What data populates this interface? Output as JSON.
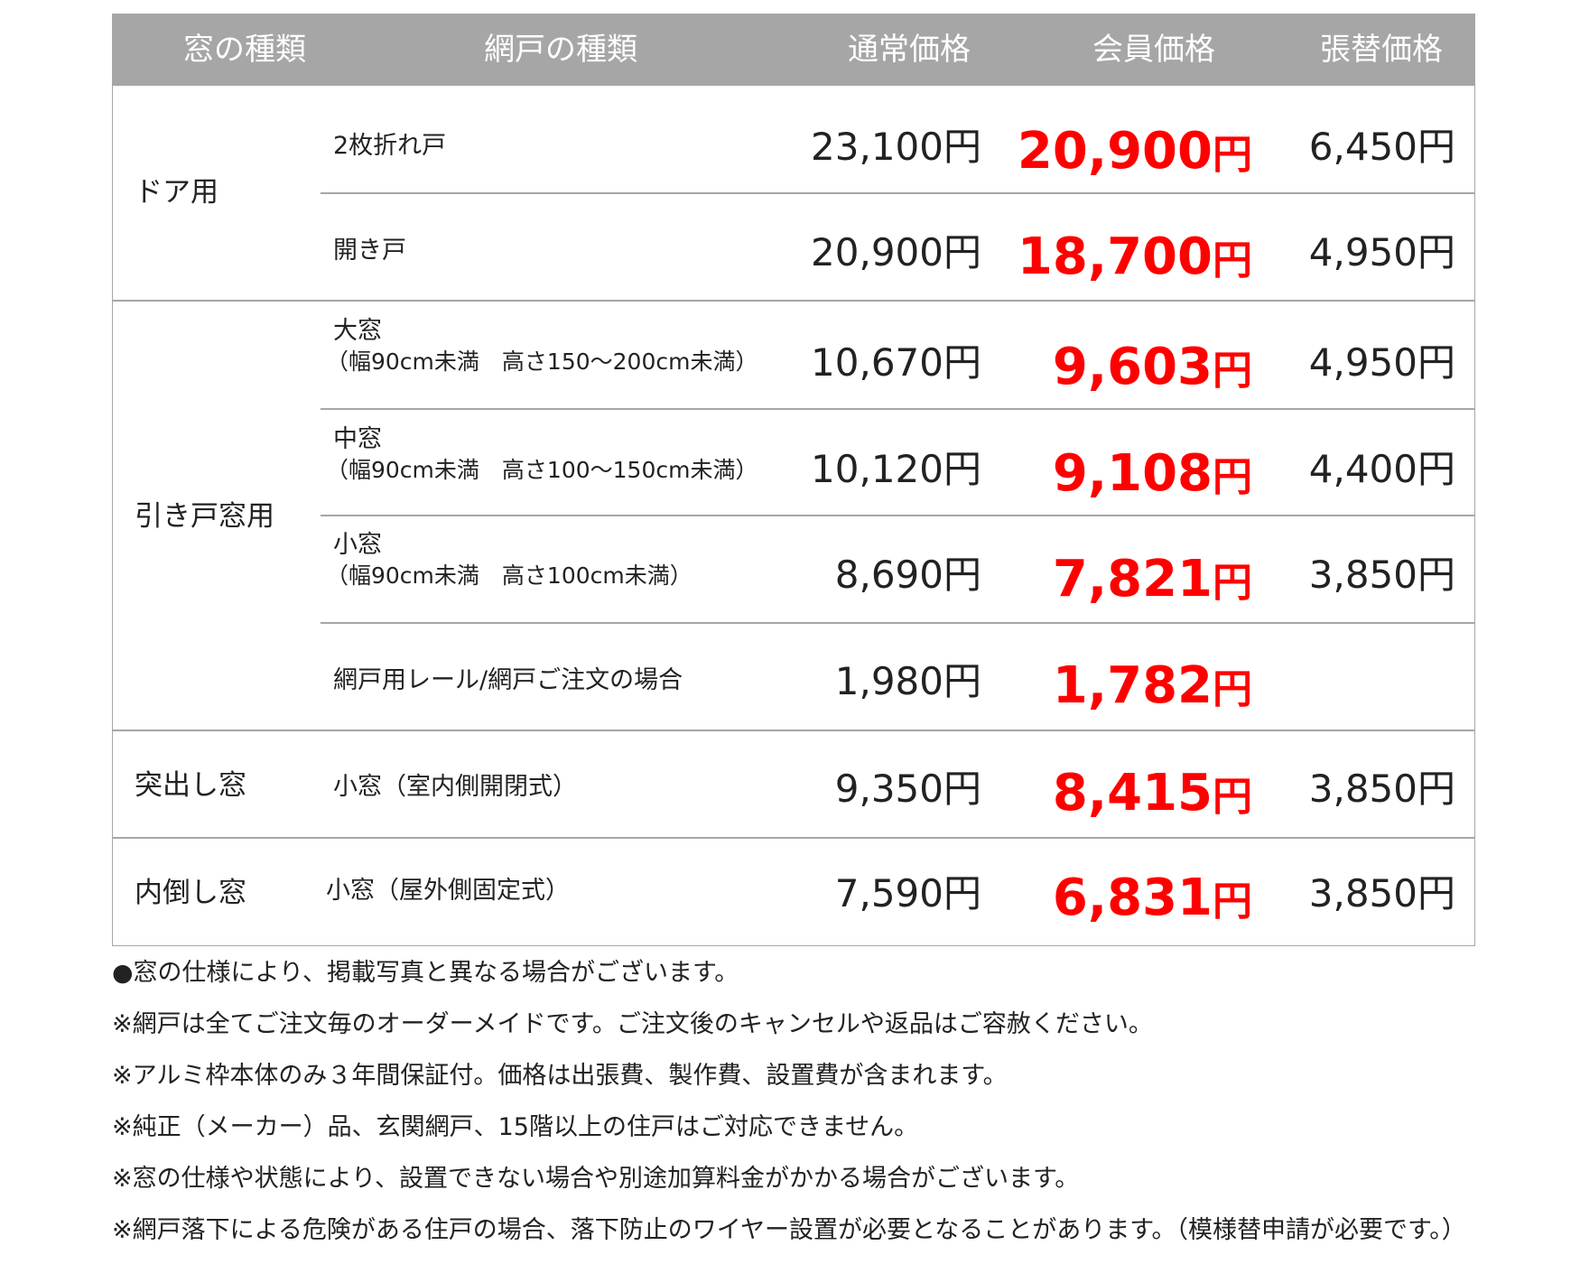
{
  "header": {
    "window_type": "窓の種類",
    "screen_type": "網戸の種類",
    "regular_price": "通常価格",
    "member_price": "会員価格",
    "replacement_price": "張替価格"
  },
  "categories": {
    "door": "ドア用",
    "sliding": "引き戸窓用",
    "projecting": "突出し窓",
    "inward": "内倒し窓"
  },
  "rows": [
    {
      "item": "2枚折れ戸",
      "sub": "",
      "regular": "23,100円",
      "member": "20,900",
      "member_unit": "円",
      "replace": "6,450円"
    },
    {
      "item": "開き戸",
      "sub": "",
      "regular": "20,900円",
      "member": "18,700",
      "member_unit": "円",
      "replace": "4,950円"
    },
    {
      "item": "大窓",
      "sub": "（幅90cm未満　高さ150～200cm未満）",
      "regular": "10,670円",
      "member": "9,603",
      "member_unit": "円",
      "replace": "4,950円"
    },
    {
      "item": "中窓",
      "sub": "（幅90cm未満　高さ100～150cm未満）",
      "regular": "10,120円",
      "member": "9,108",
      "member_unit": "円",
      "replace": "4,400円"
    },
    {
      "item": "小窓",
      "sub": "（幅90cm未満　高さ100cm未満）",
      "regular": "8,690円",
      "member": "7,821",
      "member_unit": "円",
      "replace": "3,850円"
    },
    {
      "item": "網戸用レール/網戸ご注文の場合",
      "sub": "",
      "regular": "1,980円",
      "member": "1,782",
      "member_unit": "円",
      "replace": ""
    },
    {
      "item": "小窓（室内側開閉式）",
      "sub": "",
      "regular": "9,350円",
      "member": "8,415",
      "member_unit": "円",
      "replace": "3,850円"
    },
    {
      "item": "小窓（屋外側固定式）",
      "sub": "",
      "regular": "7,590円",
      "member": "6,831",
      "member_unit": "円",
      "replace": "3,850円"
    }
  ],
  "notes": [
    "●窓の仕様により、掲載写真と異なる場合がございます。",
    "※網戸は全てご注文毎のオーダーメイドです。ご注文後のキャンセルや返品はご容赦ください。",
    "※アルミ枠本体のみ３年間保証付。価格は出張費、製作費、設置費が含まれます。",
    "※純正（メーカー）品、玄関網戸、15階以上の住戸はご対応できません。",
    "※窓の仕様や状態により、設置できない場合や別途加算料金がかかる場合がございます。",
    "※網戸落下による危険がある住戸の場合、落下防止のワイヤー設置が必要となることがあります。（模様替申請が必要です。）"
  ],
  "colors": {
    "header_bg": "#a6a6a6",
    "member_price": "#ff0000",
    "border": "#a6a6a6"
  }
}
